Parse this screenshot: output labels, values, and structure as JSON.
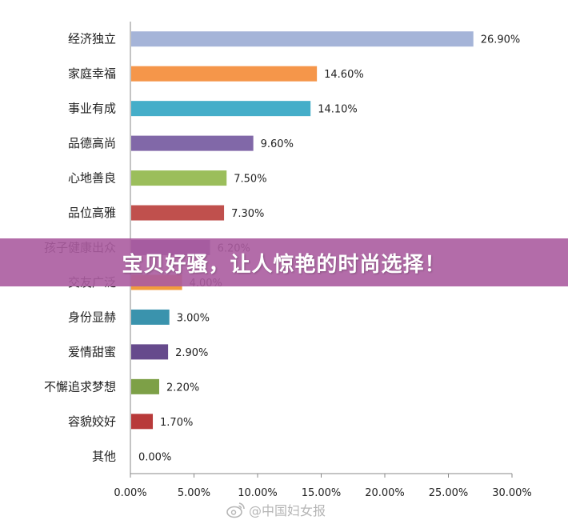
{
  "chart_data": {
    "type": "bar",
    "orientation": "horizontal",
    "categories": [
      "经济独立",
      "家庭幸福",
      "事业有成",
      "品德高尚",
      "心地善良",
      "品位高雅",
      "孩子健康出众",
      "交友广泛",
      "身份显赫",
      "爱情甜蜜",
      "不懈追求梦想",
      "容貌姣好",
      "其他"
    ],
    "values": [
      26.9,
      14.6,
      14.1,
      9.6,
      7.5,
      7.3,
      6.2,
      4.0,
      3.0,
      2.9,
      2.2,
      1.7,
      0.0
    ],
    "value_labels": [
      "26.90%",
      "14.60%",
      "14.10%",
      "9.60%",
      "7.50%",
      "7.30%",
      "6.20%",
      "4.00%",
      "3.00%",
      "2.90%",
      "2.20%",
      "1.70%",
      "0.00%"
    ],
    "colors": [
      "#a5b4d8",
      "#f5964a",
      "#45aec9",
      "#8168a8",
      "#9bbe5b",
      "#c0504d",
      "#7b5ea7",
      "#f29b3c",
      "#3a93ad",
      "#664a8c",
      "#7da047",
      "#b83a3a",
      "#ffffff"
    ],
    "xlim": [
      0,
      30
    ],
    "x_ticks": [
      "0.00%",
      "5.00%",
      "10.00%",
      "15.00%",
      "20.00%",
      "25.00%",
      "30.00%"
    ],
    "grid": false,
    "title": "",
    "xlabel": "",
    "ylabel": ""
  },
  "banner": {
    "text": "宝贝好骚，让人惊艳的时尚选择！"
  },
  "watermark": {
    "text": "@中国妇女报",
    "icon": "weibo-icon"
  }
}
